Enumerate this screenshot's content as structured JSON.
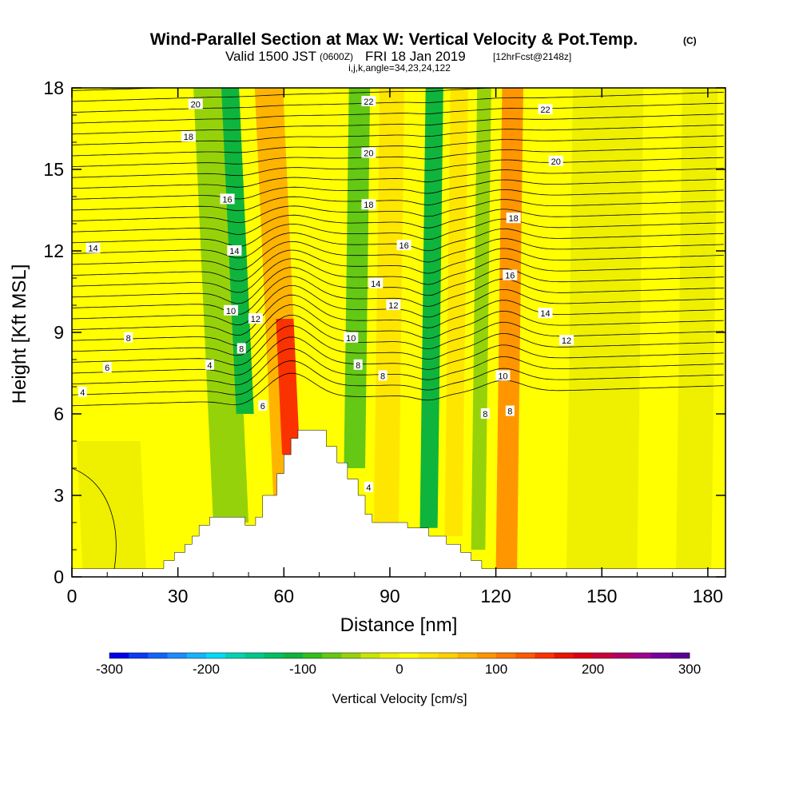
{
  "title": {
    "main": "Wind-Parallel Section at Max W: Vertical Velocity & Pot.Temp.",
    "main_units": "(C)",
    "valid_prefix": "Valid 1500 JST",
    "valid_utc": "(0600Z)",
    "valid_date": "FRI 18 Jan 2019",
    "fcst": "[12hrFcst@2148z]",
    "indices": "i,j,k,angle=34,23,24,122"
  },
  "chart_data": {
    "type": "heatmap",
    "xlabel": "Distance [nm]",
    "ylabel": "Height [Kft MSL]",
    "xlim": [
      0,
      185
    ],
    "ylim": [
      0,
      18
    ],
    "xticks": [
      0,
      30,
      60,
      90,
      120,
      150,
      180
    ],
    "yticks": [
      0,
      3,
      6,
      9,
      12,
      15,
      18
    ],
    "fill_variable": "Vertical Velocity [cm/s]",
    "colorbar": {
      "label": "Vertical Velocity [cm/s]",
      "range": [
        -300,
        300
      ],
      "ticks": [
        -300,
        -200,
        -100,
        0,
        100,
        200,
        300
      ],
      "colors": [
        "#0000ee",
        "#0a3cf5",
        "#1464fa",
        "#1e8cff",
        "#14b4ff",
        "#00dcf5",
        "#00d2b4",
        "#00c88c",
        "#00be64",
        "#0fb43c",
        "#32be1e",
        "#64c814",
        "#96d20a",
        "#c8e600",
        "#eef000",
        "#ffff00",
        "#ffe600",
        "#ffd200",
        "#ffb400",
        "#ff9600",
        "#ff7800",
        "#ff5a00",
        "#fa3200",
        "#eb1400",
        "#dc0014",
        "#c8003c",
        "#b40064",
        "#a0008c",
        "#7800a0",
        "#5a0096"
      ]
    },
    "vertical_velocity_bands": [
      {
        "x_center": 12,
        "width": 18,
        "z_min": 0.3,
        "z_max": 5,
        "w": -20
      },
      {
        "x_center": 45,
        "width": 10,
        "z_min": 2,
        "z_max": 18,
        "w": -60
      },
      {
        "x_center": 49,
        "width": 5,
        "z_min": 6,
        "z_max": 18,
        "w": -110
      },
      {
        "x_center": 61,
        "width": 8,
        "z_min": 3,
        "z_max": 18,
        "w": 60
      },
      {
        "x_center": 62,
        "width": 5,
        "z_min": 4.5,
        "z_max": 9.5,
        "w": 150
      },
      {
        "x_center": 80,
        "width": 6,
        "z_min": 4,
        "z_max": 18,
        "w": -80
      },
      {
        "x_center": 89,
        "width": 7,
        "z_min": 2,
        "z_max": 18,
        "w": 20
      },
      {
        "x_center": 101,
        "width": 5,
        "z_min": 1.8,
        "z_max": 18,
        "w": -110
      },
      {
        "x_center": 108,
        "width": 5,
        "z_min": 1.5,
        "z_max": 18,
        "w": 30
      },
      {
        "x_center": 115,
        "width": 4,
        "z_min": 1,
        "z_max": 18,
        "w": -60
      },
      {
        "x_center": 123,
        "width": 6,
        "z_min": 0.3,
        "z_max": 18,
        "w": 80
      },
      {
        "x_center": 150,
        "width": 20,
        "z_min": 0.3,
        "z_max": 18,
        "w": -15
      },
      {
        "x_center": 176,
        "width": 10,
        "z_min": 0.3,
        "z_max": 18,
        "w": -20
      }
    ],
    "terrain": {
      "x": [
        0,
        26,
        26,
        29,
        29,
        32,
        32,
        34,
        34,
        36,
        36,
        39,
        39,
        49,
        49,
        52,
        52,
        54,
        54,
        58,
        58,
        60,
        60,
        62,
        62,
        64,
        64,
        67,
        67,
        72,
        72,
        75,
        75,
        78,
        78,
        81,
        81,
        83,
        83,
        85,
        85,
        88,
        88,
        95,
        95,
        101,
        101,
        106,
        106,
        110,
        110,
        113,
        113,
        116,
        116,
        119,
        119,
        185
      ],
      "z": [
        0.3,
        0.3,
        0.6,
        0.6,
        0.9,
        0.9,
        1.2,
        1.2,
        1.5,
        1.5,
        1.9,
        1.9,
        2.2,
        2.2,
        1.9,
        1.9,
        2.2,
        2.2,
        3.0,
        3.0,
        3.8,
        3.8,
        4.5,
        4.5,
        5.1,
        5.1,
        5.4,
        5.4,
        5.4,
        5.4,
        4.8,
        4.8,
        4.2,
        4.2,
        3.6,
        3.6,
        3.0,
        3.0,
        2.3,
        2.3,
        2.0,
        2.0,
        2.0,
        2.0,
        1.8,
        1.8,
        1.5,
        1.5,
        1.2,
        1.2,
        0.9,
        0.9,
        0.6,
        0.6,
        0.3,
        0.3,
        0.3,
        0.3
      ]
    },
    "potential_temperature_contours": {
      "interval": 1,
      "levels_labeled": [
        4,
        6,
        8,
        10,
        12,
        14,
        16,
        18,
        20,
        22
      ],
      "labels": [
        {
          "text": "20",
          "x": 35,
          "z": 17.4
        },
        {
          "text": "18",
          "x": 33,
          "z": 16.2
        },
        {
          "text": "16",
          "x": 44,
          "z": 13.9
        },
        {
          "text": "14",
          "x": 6,
          "z": 12.1
        },
        {
          "text": "14",
          "x": 46,
          "z": 12.0
        },
        {
          "text": "10",
          "x": 45,
          "z": 9.8
        },
        {
          "text": "12",
          "x": 52,
          "z": 9.5
        },
        {
          "text": "8",
          "x": 16,
          "z": 8.8
        },
        {
          "text": "8",
          "x": 48,
          "z": 8.4
        },
        {
          "text": "6",
          "x": 10,
          "z": 7.7
        },
        {
          "text": "4",
          "x": 3,
          "z": 6.8
        },
        {
          "text": "4",
          "x": 39,
          "z": 7.8
        },
        {
          "text": "6",
          "x": 54,
          "z": 6.3
        },
        {
          "text": "22",
          "x": 84,
          "z": 17.5
        },
        {
          "text": "20",
          "x": 84,
          "z": 15.6
        },
        {
          "text": "18",
          "x": 84,
          "z": 13.7
        },
        {
          "text": "16",
          "x": 94,
          "z": 12.2
        },
        {
          "text": "14",
          "x": 86,
          "z": 10.8
        },
        {
          "text": "12",
          "x": 91,
          "z": 10.0
        },
        {
          "text": "10",
          "x": 79,
          "z": 8.8
        },
        {
          "text": "8",
          "x": 81,
          "z": 7.8
        },
        {
          "text": "8",
          "x": 88,
          "z": 7.4
        },
        {
          "text": "4",
          "x": 84,
          "z": 3.3
        },
        {
          "text": "22",
          "x": 134,
          "z": 17.2
        },
        {
          "text": "20",
          "x": 137,
          "z": 15.3
        },
        {
          "text": "18",
          "x": 125,
          "z": 13.2
        },
        {
          "text": "16",
          "x": 124,
          "z": 11.1
        },
        {
          "text": "14",
          "x": 134,
          "z": 9.7
        },
        {
          "text": "12",
          "x": 140,
          "z": 8.7
        },
        {
          "text": "10",
          "x": 122,
          "z": 7.4
        },
        {
          "text": "8",
          "x": 117,
          "z": 6.0
        },
        {
          "text": "8",
          "x": 124,
          "z": 6.1
        }
      ]
    }
  }
}
